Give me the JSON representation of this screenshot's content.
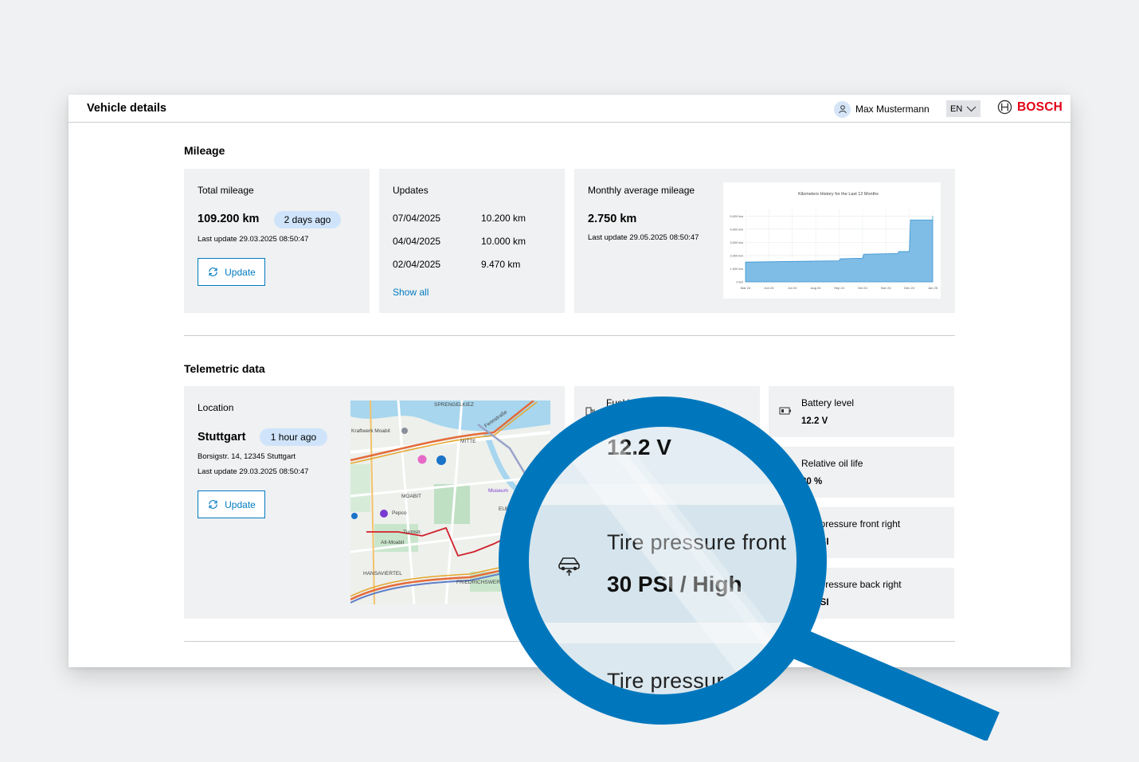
{
  "header": {
    "title": "Vehicle details",
    "user_name": "Max Mustermann",
    "language": "EN",
    "brand": "BOSCH"
  },
  "mileage": {
    "section_title": "Mileage",
    "total": {
      "label": "Total mileage",
      "value": "109.200 km",
      "badge": "2 days ago",
      "last_update": "Last update 29.03.2025 08:50:47",
      "button": "Update"
    },
    "updates": {
      "label": "Updates",
      "rows": [
        {
          "date": "07/04/2025",
          "value": "10.200 km"
        },
        {
          "date": "04/04/2025",
          "value": "10.000 km"
        },
        {
          "date": "02/04/2025",
          "value": "9.470 km"
        }
      ],
      "show_all": "Show all"
    },
    "monthly": {
      "label": "Monthly average mileage",
      "value": "2.750 km",
      "last_update": "Last update 29.05.2025 08:50:47"
    }
  },
  "chart_data": {
    "type": "area",
    "title": "Kilometers History for the Last 12 Months",
    "categories": [
      "Mar 24",
      "Jun 24",
      "Jul 24",
      "Aug 24",
      "Sep 24",
      "Oct 24",
      "Nov 24",
      "Dec 24",
      "Jan 25"
    ],
    "y_ticks": [
      "5,000 km",
      "4,000 km",
      "3,000 km",
      "2,000 km",
      "1,000 km",
      "0 km"
    ],
    "series": [
      {
        "values": [
          {
            "x": 0,
            "y": 1500
          },
          {
            "x": 4,
            "y": 1600
          },
          {
            "x": 4.05,
            "y": 1750
          },
          {
            "x": 5,
            "y": 1800
          },
          {
            "x": 5.05,
            "y": 2100
          },
          {
            "x": 6.5,
            "y": 2150
          },
          {
            "x": 6.55,
            "y": 2300
          },
          {
            "x": 7,
            "y": 2300
          },
          {
            "x": 7.05,
            "y": 4700
          },
          {
            "x": 8,
            "y": 4700
          },
          {
            "x": 8,
            "y": 5000
          }
        ]
      }
    ],
    "ylim": [
      0,
      5500
    ],
    "grid": true,
    "color": "#7fbde6"
  },
  "telemetric": {
    "section_title": "Telemetric data",
    "location": {
      "label": "Location",
      "city": "Stuttgart",
      "badge": "1 hour ago",
      "address": "Borsigstr. 14, 12345 Stuttgart",
      "last_update": "Last update 29.03.2025 08:50:47",
      "button": "Update"
    },
    "map_labels": {
      "sprengel": "SPRENGELKIEZ",
      "kraftwerk": "Kraftwerk Moabit",
      "mitte": "MITTE",
      "moabit": "MOABIT",
      "museum": "Museum",
      "pepco": "Pepco",
      "turmstr": "Turmstr.",
      "altmoabit": "Alt-Moabit",
      "hansaviertel": "HANSAVIERTEL",
      "werder": "FRIEDRICHSWERDER",
      "fennstr": "Fennstraße",
      "eur": "EUR"
    },
    "fuel": {
      "label": "Fuel level",
      "value": "12.2 V"
    },
    "battery": {
      "label": "Battery level",
      "value": "12.2 V"
    },
    "oil": {
      "label": "Relative oil life",
      "value": "80 %"
    },
    "tire_fr": {
      "label": "Tire pressure front right",
      "value": "30 PSI"
    },
    "tire_br": {
      "label": "Tire pressure back right",
      "value": "30 PSI"
    }
  },
  "magnifier": {
    "top_value": "12.2 V",
    "tire_label": "Tire pressure front",
    "tire_value": "30 PSI / High",
    "bottom_label": "Tire pressur"
  },
  "colors": {
    "accent": "#007bc0",
    "brand": "#e20015",
    "badge_bg": "#cfe4fa",
    "card_bg": "#eff1f2",
    "chart_fill": "#7fbde6"
  }
}
